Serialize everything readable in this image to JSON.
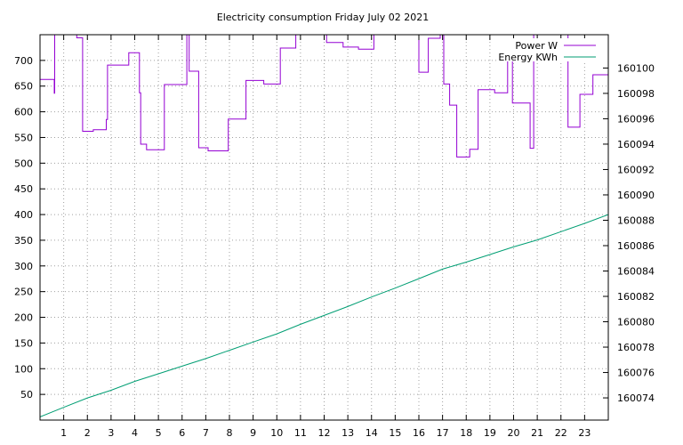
{
  "chart_data": {
    "type": "line",
    "title": "Electricity consumption Friday July 02 2021",
    "xlim": [
      0,
      24
    ],
    "x_ticks": [
      1,
      2,
      3,
      4,
      5,
      6,
      7,
      8,
      9,
      10,
      11,
      12,
      13,
      14,
      15,
      16,
      17,
      18,
      19,
      20,
      21,
      22,
      23
    ],
    "y_left": {
      "label": "",
      "lim": [
        0,
        750
      ],
      "ticks": [
        50,
        100,
        150,
        200,
        250,
        300,
        350,
        400,
        450,
        500,
        550,
        600,
        650,
        700
      ]
    },
    "y_right": {
      "label": "",
      "lim": [
        160072.25,
        160102.625
      ],
      "ticks": [
        160074,
        160076,
        160078,
        160080,
        160082,
        160084,
        160086,
        160088,
        160090,
        160092,
        160094,
        160096,
        160098,
        160100
      ]
    },
    "grid": true,
    "legend_position": "top-right",
    "colors": {
      "power": "#9400d3",
      "energy": "#009e73"
    },
    "series": [
      {
        "name": "Power W",
        "axis": "left",
        "step": true,
        "x": [
          0,
          0.6,
          0.62,
          0.65,
          1.55,
          1.8,
          2.25,
          2.8,
          2.85,
          3.75,
          4.2,
          4.25,
          4.5,
          4.85,
          5.25,
          5.9,
          6.2,
          6.3,
          6.7,
          7.1,
          7.95,
          8.7,
          9.45,
          10.15,
          10.8,
          11.4,
          12.1,
          12.8,
          13.45,
          14.1,
          14.35,
          14.8,
          15.3,
          16,
          16.4,
          16.9,
          17.05,
          17.3,
          17.6,
          18.15,
          18.5,
          19.2,
          19.75,
          19.95,
          20.7,
          20.85,
          21.6,
          21.95,
          22.3,
          22.8,
          23.05,
          23.35,
          24
        ],
        "values": [
          663,
          636,
          750,
          750,
          744,
          562,
          565,
          585,
          691,
          715,
          637,
          537,
          526,
          526,
          653,
          653,
          750,
          679,
          530,
          524,
          586,
          661,
          654,
          724,
          750,
          750,
          735,
          726,
          722,
          750,
          750,
          750,
          750,
          677,
          743,
          750,
          654,
          613,
          512,
          527,
          643,
          637,
          706,
          617,
          529,
          750,
          750,
          750,
          570,
          634,
          634,
          672,
          750
        ]
      },
      {
        "name": "Energy KWh",
        "axis": "right",
        "x": [
          0,
          1,
          2,
          3,
          4,
          5,
          6,
          7,
          8,
          9,
          10,
          11,
          12,
          13,
          14,
          15,
          16,
          17,
          18,
          19,
          20,
          21,
          22,
          23,
          24
        ],
        "values": [
          160072.5,
          160073.25,
          160074,
          160074.6,
          160075.3,
          160075.9,
          160076.5,
          160077.1,
          160077.75,
          160078.4,
          160079.05,
          160079.8,
          160080.5,
          160081.2,
          160081.95,
          160082.65,
          160083.4,
          160084.15,
          160084.7,
          160085.3,
          160085.9,
          160086.45,
          160087.1,
          160087.75,
          160088.45
        ]
      }
    ]
  }
}
